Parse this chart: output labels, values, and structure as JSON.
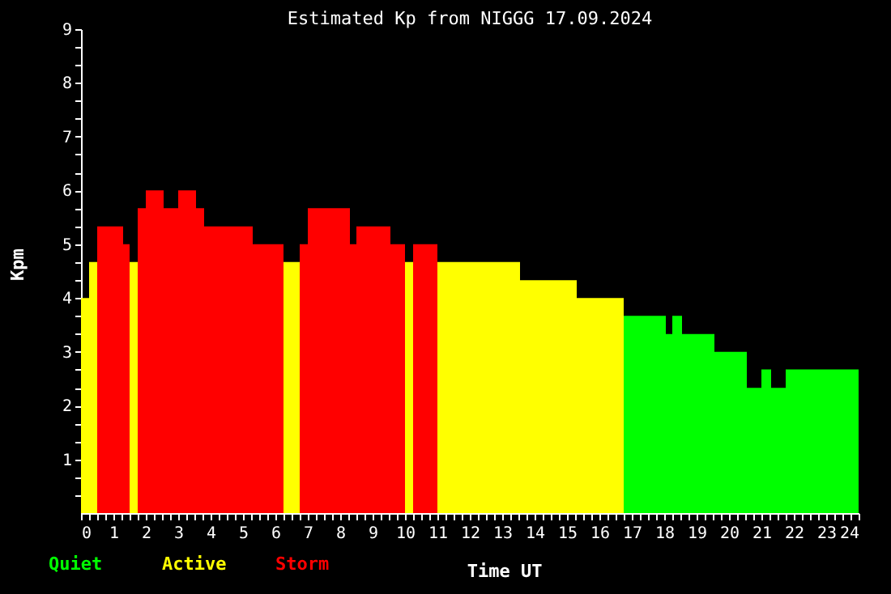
{
  "chart_data": {
    "type": "bar",
    "title": "Estimated Kp from NIGGG 17.09.2024",
    "xlabel": "Time UT",
    "ylabel": "Kpm",
    "x": [
      0.125,
      0.375,
      0.9,
      1.4,
      1.625,
      1.875,
      2.275,
      2.775,
      3.275,
      3.675,
      4.55,
      5.775,
      6.5,
      6.875,
      7.65,
      8.4,
      9.025,
      9.775,
      10.125,
      10.625,
      12.275,
      14.425,
      16.025,
      17.4,
      18.15,
      18.4,
      19.05,
      20.05,
      20.775,
      21.15,
      21.525,
      22.875
    ],
    "series": [
      {
        "name": "Quiet",
        "color": "#00ff00",
        "values": [
          null,
          null,
          null,
          null,
          null,
          null,
          null,
          null,
          null,
          null,
          null,
          null,
          null,
          null,
          null,
          null,
          null,
          null,
          null,
          null,
          null,
          null,
          null,
          3.67,
          3.33,
          3.67,
          3.33,
          3,
          2.33,
          2.67,
          2.33,
          2.67
        ]
      },
      {
        "name": "Active",
        "color": "#ffff00",
        "values": [
          4,
          4.67,
          null,
          null,
          4.67,
          null,
          null,
          null,
          null,
          null,
          null,
          null,
          4.67,
          null,
          null,
          null,
          null,
          null,
          4.67,
          null,
          4.67,
          4.33,
          4,
          null,
          null,
          null,
          null,
          null,
          null,
          null,
          null,
          null
        ]
      },
      {
        "name": "Storm",
        "color": "#ff0000",
        "values": [
          null,
          null,
          5.33,
          5,
          null,
          5.67,
          6,
          5.67,
          6,
          5.67,
          5.33,
          5,
          null,
          5,
          5.67,
          5,
          5.33,
          5,
          null,
          5,
          null,
          null,
          null,
          null,
          null,
          null,
          null,
          null,
          null,
          null,
          null,
          null
        ]
      }
    ],
    "xlim": [
      0,
      24
    ],
    "xticks": [
      0,
      {
        "value": 0.25,
        "label": null
      },
      {
        "value": 0.5,
        "label": null
      },
      {
        "value": 0.75,
        "label": null
      },
      1,
      {
        "value": 1.25,
        "label": null
      },
      {
        "value": 1.5,
        "label": null
      },
      {
        "value": 1.75,
        "label": null
      },
      2,
      {
        "value": 2.25,
        "label": null
      },
      {
        "value": 2.5,
        "label": null
      },
      {
        "value": 2.75,
        "label": null
      },
      3,
      {
        "value": 3.25,
        "label": null
      },
      {
        "value": 3.5,
        "label": null
      },
      {
        "value": 3.75,
        "label": null
      },
      4,
      {
        "value": 4.25,
        "label": null
      },
      {
        "value": 4.5,
        "label": null
      },
      {
        "value": 4.75,
        "label": null
      },
      5,
      {
        "value": 5.25,
        "label": null
      },
      {
        "value": 5.5,
        "label": null
      },
      {
        "value": 5.75,
        "label": null
      },
      6,
      {
        "value": 6.25,
        "label": null
      },
      {
        "value": 6.5,
        "label": null
      },
      {
        "value": 6.75,
        "label": null
      },
      7,
      {
        "value": 7.25,
        "label": null
      },
      {
        "value": 7.5,
        "label": null
      },
      {
        "value": 7.75,
        "label": null
      },
      8,
      {
        "value": 8.25,
        "label": null
      },
      {
        "value": 8.5,
        "label": null
      },
      {
        "value": 8.75,
        "label": null
      },
      9,
      {
        "value": 9.25,
        "label": null
      },
      {
        "value": 9.5,
        "label": null
      },
      {
        "value": 9.75,
        "label": null
      },
      10,
      {
        "value": 10.25,
        "label": null
      },
      {
        "value": 10.5,
        "label": null
      },
      {
        "value": 10.75,
        "label": null
      },
      11,
      {
        "value": 11.25,
        "label": null
      },
      {
        "value": 11.5,
        "label": null
      },
      {
        "value": 11.75,
        "label": null
      },
      12,
      {
        "value": 12.25,
        "label": null
      },
      {
        "value": 12.5,
        "label": null
      },
      {
        "value": 12.75,
        "label": null
      },
      13,
      {
        "value": 13.25,
        "label": null
      },
      {
        "value": 13.5,
        "label": null
      },
      {
        "value": 13.75,
        "label": null
      },
      14,
      {
        "value": 14.25,
        "label": null
      },
      {
        "value": 14.5,
        "label": null
      },
      {
        "value": 14.75,
        "label": null
      },
      15,
      {
        "value": 15.25,
        "label": null
      },
      {
        "value": 15.5,
        "label": null
      },
      {
        "value": 15.75,
        "label": null
      },
      16,
      {
        "value": 16.25,
        "label": null
      },
      {
        "value": 16.5,
        "label": null
      },
      {
        "value": 16.75,
        "label": null
      },
      17,
      {
        "value": 17.25,
        "label": null
      },
      {
        "value": 17.5,
        "label": null
      },
      {
        "value": 17.75,
        "label": null
      },
      18,
      {
        "value": 18.25,
        "label": null
      },
      {
        "value": 18.5,
        "label": null
      },
      {
        "value": 18.75,
        "label": null
      },
      19,
      {
        "value": 19.25,
        "label": null
      },
      {
        "value": 19.5,
        "label": null
      },
      {
        "value": 19.75,
        "label": null
      },
      20,
      {
        "value": 20.25,
        "label": null
      },
      {
        "value": 20.5,
        "label": null
      },
      {
        "value": 20.75,
        "label": null
      },
      21,
      {
        "value": 21.25,
        "label": null
      },
      {
        "value": 21.5,
        "label": null
      },
      {
        "value": 21.75,
        "label": null
      },
      22,
      {
        "value": 22.25,
        "label": null
      },
      {
        "value": 22.5,
        "label": null
      },
      {
        "value": 22.75,
        "label": null
      },
      23,
      {
        "value": 23.25,
        "label": null
      },
      {
        "value": 23.5,
        "label": null
      },
      {
        "value": 23.75,
        "label": null
      },
      24
    ],
    "ylim": [
      0,
      9
    ],
    "yticks": [
      {
        "value": 0.33,
        "label": null
      },
      {
        "value": 0.67,
        "label": null
      },
      1,
      {
        "value": 1.33,
        "label": null
      },
      {
        "value": 1.67,
        "label": null
      },
      2,
      {
        "value": 2.33,
        "label": null
      },
      {
        "value": 2.67,
        "label": null
      },
      3,
      {
        "value": 3.33,
        "label": null
      },
      {
        "value": 3.67,
        "label": null
      },
      4,
      {
        "value": 4.33,
        "label": null
      },
      {
        "value": 4.67,
        "label": null
      },
      5,
      {
        "value": 5.33,
        "label": null
      },
      {
        "value": 5.67,
        "label": null
      },
      6,
      {
        "value": 6.33,
        "label": null
      },
      {
        "value": 6.67,
        "label": null
      },
      7,
      {
        "value": 7.33,
        "label": null
      },
      {
        "value": 7.67,
        "label": null
      },
      8,
      {
        "value": 8.33,
        "label": null
      },
      {
        "value": 8.67,
        "label": null
      },
      9
    ],
    "grid": false,
    "legend": "bottom"
  }
}
